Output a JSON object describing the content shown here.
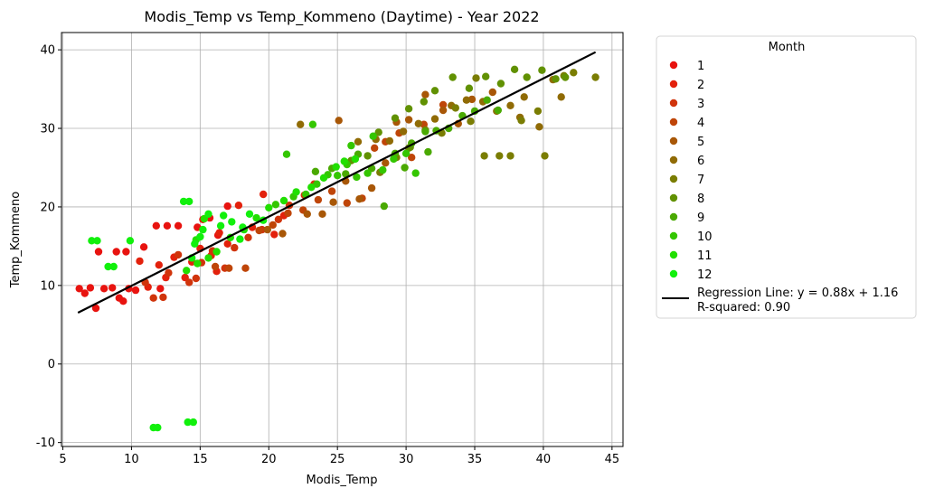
{
  "chart_data": {
    "type": "scatter",
    "title": "Modis_Temp vs Temp_Kommeno (Daytime) - Year 2022",
    "xlabel": "Modis_Temp",
    "ylabel": "Temp_Kommeno",
    "xlim": [
      4.9,
      45.8
    ],
    "ylim": [
      -10.5,
      42.2
    ],
    "xticks": [
      5,
      10,
      15,
      20,
      25,
      30,
      35,
      40,
      45
    ],
    "yticks": [
      -10,
      0,
      10,
      20,
      30,
      40
    ],
    "grid": true,
    "legend": {
      "title": "Month",
      "placement": "outside-right",
      "regression_label": "Regression Line: y = 0.88x + 1.16",
      "r_squared_label": "R-squared: 0.90"
    },
    "regression": {
      "slope": 0.88,
      "intercept": 1.16,
      "x_range": [
        6.1,
        43.8
      ],
      "color": "#000000"
    },
    "series": [
      {
        "name": "1",
        "color": "#e8130f",
        "points": [
          [
            6.2,
            9.6
          ],
          [
            6.6,
            9.0
          ],
          [
            7.0,
            9.7
          ],
          [
            7.4,
            7.1
          ],
          [
            7.6,
            14.3
          ],
          [
            8.0,
            9.6
          ],
          [
            8.6,
            9.7
          ],
          [
            8.9,
            14.3
          ],
          [
            9.1,
            8.4
          ],
          [
            9.4,
            8.0
          ],
          [
            9.6,
            14.3
          ],
          [
            9.8,
            9.6
          ],
          [
            10.3,
            9.4
          ],
          [
            10.9,
            14.9
          ],
          [
            11.8,
            17.6
          ],
          [
            12.6,
            17.6
          ],
          [
            13.4,
            17.6
          ],
          [
            14.8,
            17.4
          ],
          [
            15.7,
            18.6
          ],
          [
            17.0,
            20.1
          ],
          [
            16.3,
            16.4
          ],
          [
            15.2,
            18.4
          ],
          [
            12.1,
            9.6
          ]
        ]
      },
      {
        "name": "2",
        "color": "#e3210c",
        "points": [
          [
            10.6,
            13.1
          ],
          [
            11.2,
            9.8
          ],
          [
            12.0,
            12.6
          ],
          [
            13.1,
            13.6
          ],
          [
            13.9,
            11.0
          ],
          [
            15.0,
            14.7
          ],
          [
            15.8,
            13.8
          ],
          [
            16.4,
            16.7
          ],
          [
            17.0,
            15.3
          ],
          [
            17.8,
            20.2
          ],
          [
            18.8,
            17.4
          ],
          [
            19.6,
            21.6
          ],
          [
            20.4,
            16.5
          ],
          [
            21.1,
            18.9
          ],
          [
            16.2,
            11.8
          ],
          [
            14.4,
            13.0
          ],
          [
            12.5,
            11.0
          ]
        ]
      },
      {
        "name": "3",
        "color": "#d0340b",
        "points": [
          [
            11.0,
            10.4
          ],
          [
            11.6,
            8.4
          ],
          [
            12.3,
            8.5
          ],
          [
            12.7,
            11.6
          ],
          [
            13.4,
            13.9
          ],
          [
            14.2,
            10.4
          ],
          [
            15.1,
            12.9
          ],
          [
            15.9,
            14.4
          ],
          [
            16.8,
            12.2
          ],
          [
            17.5,
            14.8
          ],
          [
            18.5,
            16.1
          ],
          [
            19.5,
            17.1
          ],
          [
            20.7,
            18.4
          ],
          [
            21.5,
            20.2
          ],
          [
            22.6,
            21.5
          ],
          [
            23.3,
            22.9
          ],
          [
            14.7,
            10.9
          ]
        ]
      },
      {
        "name": "4",
        "color": "#bf4508",
        "points": [
          [
            16.1,
            12.4
          ],
          [
            17.1,
            12.2
          ],
          [
            18.3,
            12.2
          ],
          [
            19.3,
            17.0
          ],
          [
            20.3,
            17.7
          ],
          [
            21.4,
            19.2
          ],
          [
            22.5,
            19.6
          ],
          [
            23.6,
            20.9
          ],
          [
            24.6,
            22.0
          ],
          [
            25.7,
            20.5
          ],
          [
            26.8,
            21.1
          ],
          [
            27.7,
            27.5
          ],
          [
            28.5,
            28.3
          ],
          [
            29.5,
            29.4
          ],
          [
            30.4,
            26.3
          ],
          [
            31.3,
            30.5
          ],
          [
            32.7,
            33.0
          ]
        ]
      },
      {
        "name": "5",
        "color": "#a85707",
        "points": [
          [
            19.9,
            17.1
          ],
          [
            21.0,
            16.6
          ],
          [
            22.8,
            19.1
          ],
          [
            23.9,
            19.1
          ],
          [
            24.7,
            20.6
          ],
          [
            25.6,
            23.3
          ],
          [
            26.6,
            21.0
          ],
          [
            27.5,
            22.4
          ],
          [
            28.5,
            25.6
          ],
          [
            29.3,
            30.8
          ],
          [
            30.2,
            31.1
          ],
          [
            31.4,
            34.3
          ],
          [
            32.7,
            32.3
          ],
          [
            33.8,
            30.6
          ],
          [
            34.8,
            33.7
          ],
          [
            36.3,
            34.6
          ],
          [
            25.1,
            31.0
          ]
        ]
      },
      {
        "name": "6",
        "color": "#906b05",
        "points": [
          [
            22.3,
            30.5
          ],
          [
            26.5,
            28.3
          ],
          [
            27.8,
            28.6
          ],
          [
            28.8,
            28.4
          ],
          [
            29.8,
            29.6
          ],
          [
            30.9,
            30.6
          ],
          [
            32.1,
            31.2
          ],
          [
            33.3,
            32.9
          ],
          [
            34.4,
            33.6
          ],
          [
            35.6,
            33.4
          ],
          [
            36.6,
            32.2
          ],
          [
            37.6,
            32.9
          ],
          [
            38.6,
            34.0
          ],
          [
            39.7,
            30.2
          ],
          [
            40.7,
            36.2
          ],
          [
            41.3,
            34.0
          ],
          [
            38.3,
            31.4
          ]
        ]
      },
      {
        "name": "7",
        "color": "#7a7d03",
        "points": [
          [
            28.1,
            24.4
          ],
          [
            29.3,
            26.3
          ],
          [
            30.2,
            27.5
          ],
          [
            31.4,
            29.8
          ],
          [
            32.6,
            29.4
          ],
          [
            33.6,
            32.6
          ],
          [
            34.7,
            30.9
          ],
          [
            35.7,
            26.5
          ],
          [
            36.8,
            26.5
          ],
          [
            37.6,
            26.5
          ],
          [
            38.4,
            31.0
          ],
          [
            39.6,
            32.2
          ],
          [
            40.1,
            26.5
          ],
          [
            41.5,
            36.7
          ],
          [
            42.2,
            37.1
          ],
          [
            43.8,
            36.5
          ],
          [
            35.1,
            36.4
          ]
        ]
      },
      {
        "name": "8",
        "color": "#619102",
        "points": [
          [
            26.0,
            25.9
          ],
          [
            27.2,
            26.5
          ],
          [
            28.0,
            29.5
          ],
          [
            29.2,
            31.3
          ],
          [
            30.2,
            32.5
          ],
          [
            31.3,
            33.4
          ],
          [
            32.1,
            34.8
          ],
          [
            33.4,
            36.5
          ],
          [
            34.6,
            35.1
          ],
          [
            35.8,
            36.6
          ],
          [
            36.9,
            35.7
          ],
          [
            37.9,
            37.5
          ],
          [
            38.8,
            36.5
          ],
          [
            39.9,
            37.4
          ],
          [
            40.9,
            36.3
          ],
          [
            41.6,
            36.5
          ],
          [
            30.3,
            27.6
          ]
        ]
      },
      {
        "name": "9",
        "color": "#4aa902",
        "points": [
          [
            23.4,
            24.5
          ],
          [
            24.6,
            24.9
          ],
          [
            25.6,
            24.2
          ],
          [
            26.5,
            26.7
          ],
          [
            27.5,
            24.9
          ],
          [
            28.4,
            20.1
          ],
          [
            29.2,
            26.8
          ],
          [
            30.4,
            28.1
          ],
          [
            31.4,
            29.6
          ],
          [
            32.2,
            29.7
          ],
          [
            33.1,
            30.0
          ],
          [
            34.1,
            31.6
          ],
          [
            35.0,
            32.2
          ],
          [
            35.9,
            33.6
          ],
          [
            36.7,
            32.3
          ],
          [
            31.6,
            27.0
          ],
          [
            29.9,
            25.0
          ]
        ]
      },
      {
        "name": "10",
        "color": "#34c601",
        "points": [
          [
            20.5,
            20.3
          ],
          [
            21.8,
            21.3
          ],
          [
            22.7,
            21.6
          ],
          [
            23.5,
            22.9
          ],
          [
            24.3,
            24.1
          ],
          [
            25.0,
            24.0
          ],
          [
            25.7,
            25.4
          ],
          [
            26.4,
            23.8
          ],
          [
            27.2,
            24.3
          ],
          [
            28.3,
            24.7
          ],
          [
            29.1,
            26.1
          ],
          [
            30.0,
            26.8
          ],
          [
            21.3,
            26.7
          ],
          [
            23.2,
            30.5
          ],
          [
            26.0,
            27.8
          ],
          [
            27.6,
            29.0
          ],
          [
            30.7,
            24.3
          ]
        ]
      },
      {
        "name": "11",
        "color": "#21df01",
        "points": [
          [
            14.0,
            11.9
          ],
          [
            14.8,
            12.8
          ],
          [
            15.6,
            13.5
          ],
          [
            16.2,
            14.3
          ],
          [
            17.2,
            16.1
          ],
          [
            18.2,
            17.1
          ],
          [
            19.1,
            18.6
          ],
          [
            20.0,
            19.9
          ],
          [
            21.1,
            20.8
          ],
          [
            22.0,
            21.9
          ],
          [
            23.1,
            22.5
          ],
          [
            24.0,
            23.7
          ],
          [
            24.9,
            25.1
          ],
          [
            25.5,
            25.8
          ],
          [
            26.3,
            26.1
          ],
          [
            14.7,
            15.8
          ],
          [
            15.3,
            18.5
          ]
        ]
      },
      {
        "name": "12",
        "color": "#11f00c",
        "points": [
          [
            7.1,
            15.7
          ],
          [
            7.5,
            15.7
          ],
          [
            8.3,
            12.4
          ],
          [
            8.7,
            12.4
          ],
          [
            9.9,
            15.7
          ],
          [
            11.6,
            -8.1
          ],
          [
            11.9,
            -8.1
          ],
          [
            14.1,
            -7.4
          ],
          [
            14.5,
            -7.4
          ],
          [
            13.8,
            20.7
          ],
          [
            14.2,
            20.7
          ],
          [
            14.6,
            15.3
          ],
          [
            15.2,
            17.1
          ],
          [
            15.6,
            19.1
          ],
          [
            16.5,
            17.6
          ],
          [
            17.3,
            18.1
          ],
          [
            18.6,
            19.1
          ],
          [
            19.6,
            18.3
          ],
          [
            18.1,
            17.4
          ],
          [
            14.4,
            13.5
          ],
          [
            15.0,
            16.2
          ],
          [
            17.9,
            15.9
          ],
          [
            16.7,
            18.9
          ]
        ]
      }
    ]
  }
}
